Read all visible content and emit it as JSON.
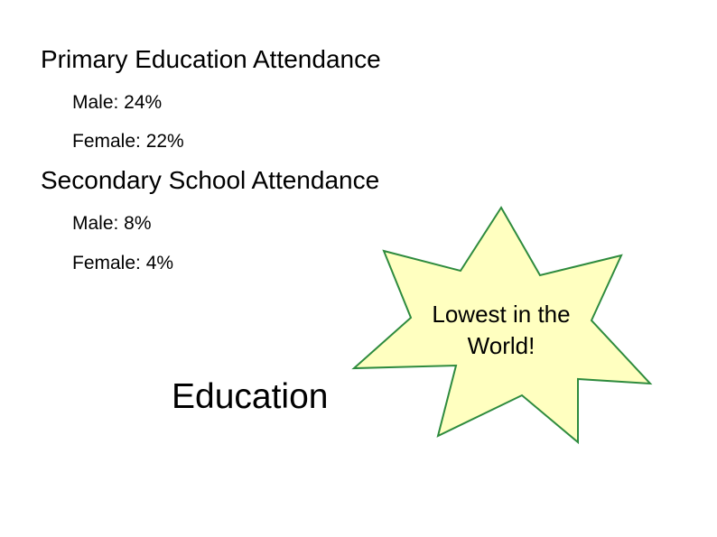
{
  "bullets": [
    {
      "text": "Primary Education Attendance",
      "items": [
        "Male: 24%",
        "Female: 22%"
      ]
    },
    {
      "text": "Secondary School Attendance",
      "items": [
        "Male: 8%",
        "Female: 4%"
      ]
    }
  ],
  "callout": {
    "lines": [
      "Lowest in the",
      "World!"
    ]
  },
  "title": "Education"
}
